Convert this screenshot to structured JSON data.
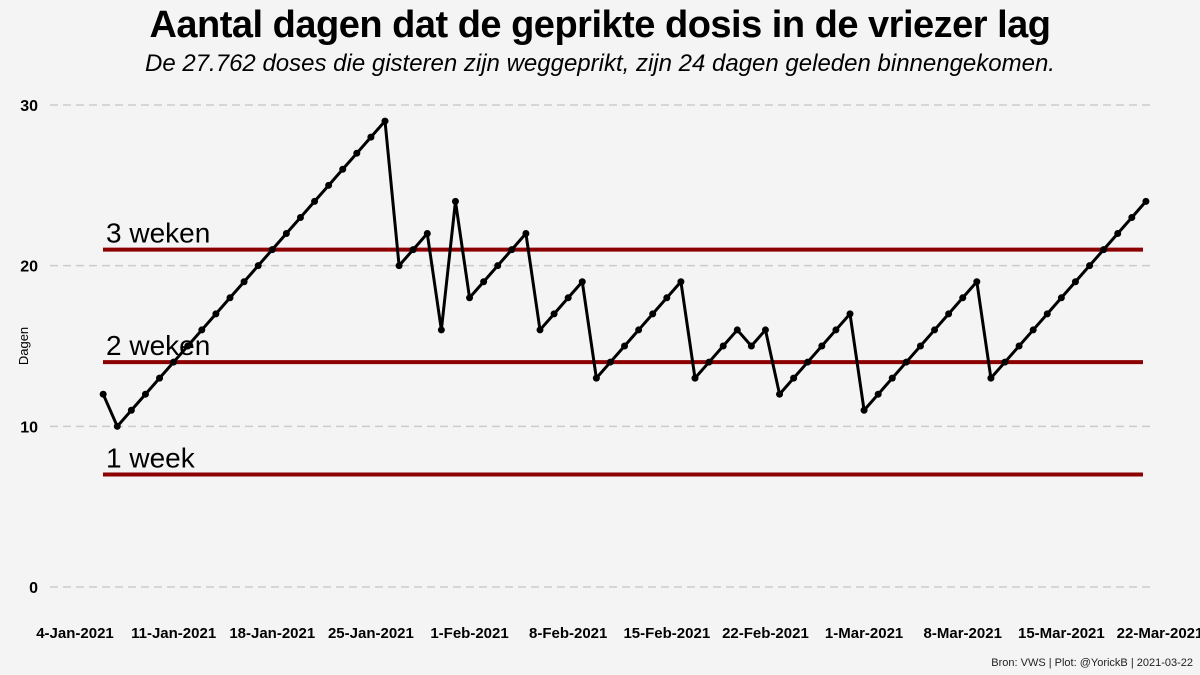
{
  "title": "Aantal dagen dat de geprikte dosis in de vriezer lag",
  "subtitle": "De 27.762 doses die gisteren zijn weggeprikt, zijn 24 dagen geleden binnengekomen.",
  "footer": "Bron: VWS | Plot: @YorickB  |  2021-03-22",
  "chart_data": {
    "type": "line",
    "title": "Aantal dagen dat de geprikte dosis in de vriezer lag",
    "subtitle": "De 27.762 doses die gisteren zijn weggeprikt, zijn 24 dagen geleden binnengekomen.",
    "xlabel": "",
    "ylabel": "Dagen",
    "ylim": [
      0,
      30
    ],
    "yticks": [
      0,
      10,
      20,
      30
    ],
    "grid": "horizontal-dashed",
    "legend": "none",
    "xtick_labels": [
      "4-Jan-2021",
      "11-Jan-2021",
      "18-Jan-2021",
      "25-Jan-2021",
      "1-Feb-2021",
      "8-Feb-2021",
      "15-Feb-2021",
      "22-Feb-2021",
      "1-Mar-2021",
      "8-Mar-2021",
      "15-Mar-2021",
      "22-Mar-2021"
    ],
    "reference_lines": [
      {
        "label": "3 weken",
        "value": 21
      },
      {
        "label": "2 weken",
        "value": 14
      },
      {
        "label": "1 week",
        "value": 7
      }
    ],
    "x": [
      "6-Jan-2021",
      "7-Jan-2021",
      "8-Jan-2021",
      "9-Jan-2021",
      "10-Jan-2021",
      "11-Jan-2021",
      "12-Jan-2021",
      "13-Jan-2021",
      "14-Jan-2021",
      "15-Jan-2021",
      "16-Jan-2021",
      "17-Jan-2021",
      "18-Jan-2021",
      "19-Jan-2021",
      "20-Jan-2021",
      "21-Jan-2021",
      "22-Jan-2021",
      "23-Jan-2021",
      "24-Jan-2021",
      "25-Jan-2021",
      "26-Jan-2021",
      "27-Jan-2021",
      "28-Jan-2021",
      "29-Jan-2021",
      "30-Jan-2021",
      "31-Jan-2021",
      "1-Feb-2021",
      "2-Feb-2021",
      "3-Feb-2021",
      "4-Feb-2021",
      "5-Feb-2021",
      "6-Feb-2021",
      "7-Feb-2021",
      "8-Feb-2021",
      "9-Feb-2021",
      "10-Feb-2021",
      "11-Feb-2021",
      "12-Feb-2021",
      "13-Feb-2021",
      "14-Feb-2021",
      "15-Feb-2021",
      "16-Feb-2021",
      "17-Feb-2021",
      "18-Feb-2021",
      "19-Feb-2021",
      "20-Feb-2021",
      "21-Feb-2021",
      "22-Feb-2021",
      "23-Feb-2021",
      "24-Feb-2021",
      "25-Feb-2021",
      "26-Feb-2021",
      "27-Feb-2021",
      "28-Feb-2021",
      "1-Mar-2021",
      "2-Mar-2021",
      "3-Mar-2021",
      "4-Mar-2021",
      "5-Mar-2021",
      "6-Mar-2021",
      "7-Mar-2021",
      "8-Mar-2021",
      "9-Mar-2021",
      "10-Mar-2021",
      "11-Mar-2021",
      "12-Mar-2021",
      "13-Mar-2021",
      "14-Mar-2021",
      "15-Mar-2021",
      "16-Mar-2021",
      "17-Mar-2021",
      "18-Mar-2021",
      "19-Mar-2021",
      "20-Mar-2021",
      "21-Mar-2021"
    ],
    "values": [
      12,
      10,
      11,
      12,
      13,
      14,
      15,
      16,
      17,
      18,
      19,
      20,
      21,
      22,
      23,
      24,
      25,
      26,
      27,
      28,
      29,
      20,
      21,
      22,
      16,
      24,
      18,
      19,
      20,
      21,
      22,
      16,
      17,
      18,
      19,
      13,
      14,
      15,
      16,
      17,
      18,
      19,
      13,
      14,
      15,
      16,
      15,
      16,
      12,
      13,
      14,
      15,
      16,
      17,
      11,
      12,
      13,
      14,
      15,
      16,
      17,
      18,
      19,
      13,
      14,
      15,
      16,
      17,
      18,
      19,
      20,
      21,
      22,
      23,
      24
    ],
    "colors": {
      "line": "#000000",
      "marker": "#000000",
      "reference": "#8b0000",
      "grid": "#cbcbcb",
      "text": "#000000",
      "background": "#f5f4f5"
    }
  }
}
